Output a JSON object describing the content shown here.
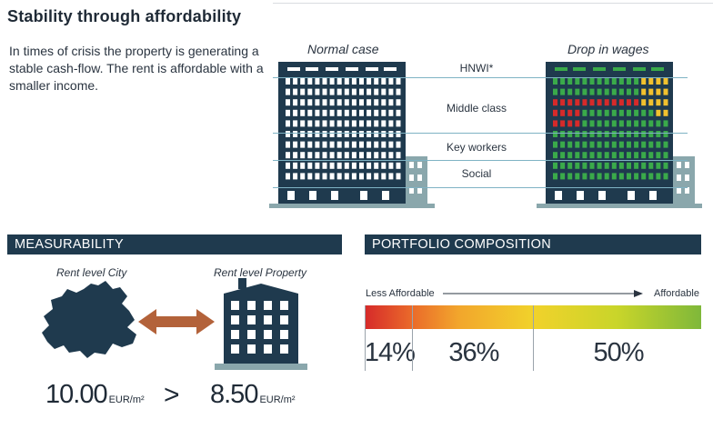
{
  "title": "Stability through affordability",
  "intro": "In times of crisis the property is generating a stable cash-flow. The rent is affordable with a smaller income.",
  "cases": {
    "normal": "Normal case",
    "drop": "Drop in wages"
  },
  "bands": [
    "HNWI*",
    "Middle class",
    "Key workers",
    "Social"
  ],
  "colors": {
    "navy": "#1f3a4e",
    "window": "#ffffff",
    "green": "#3aaa4a",
    "red": "#d62a2a",
    "yellow": "#f2c12e",
    "grey": "#8aa7ac",
    "arrow": "#b3623a"
  },
  "measurability": {
    "header": "MEASURABILITY",
    "city_label": "Rent level City",
    "property_label": "Rent level Property",
    "city_value": "10.00",
    "property_value": "8.50",
    "unit": "EUR/m²",
    "comparator": ">"
  },
  "portfolio": {
    "header": "PORTFOLIO COMPOSITION",
    "less_label": "Less Affordable",
    "more_label": "Affordable",
    "segments": [
      {
        "label": "14%",
        "value": 14
      },
      {
        "label": "36%",
        "value": 36
      },
      {
        "label": "50%",
        "value": 50
      }
    ]
  }
}
